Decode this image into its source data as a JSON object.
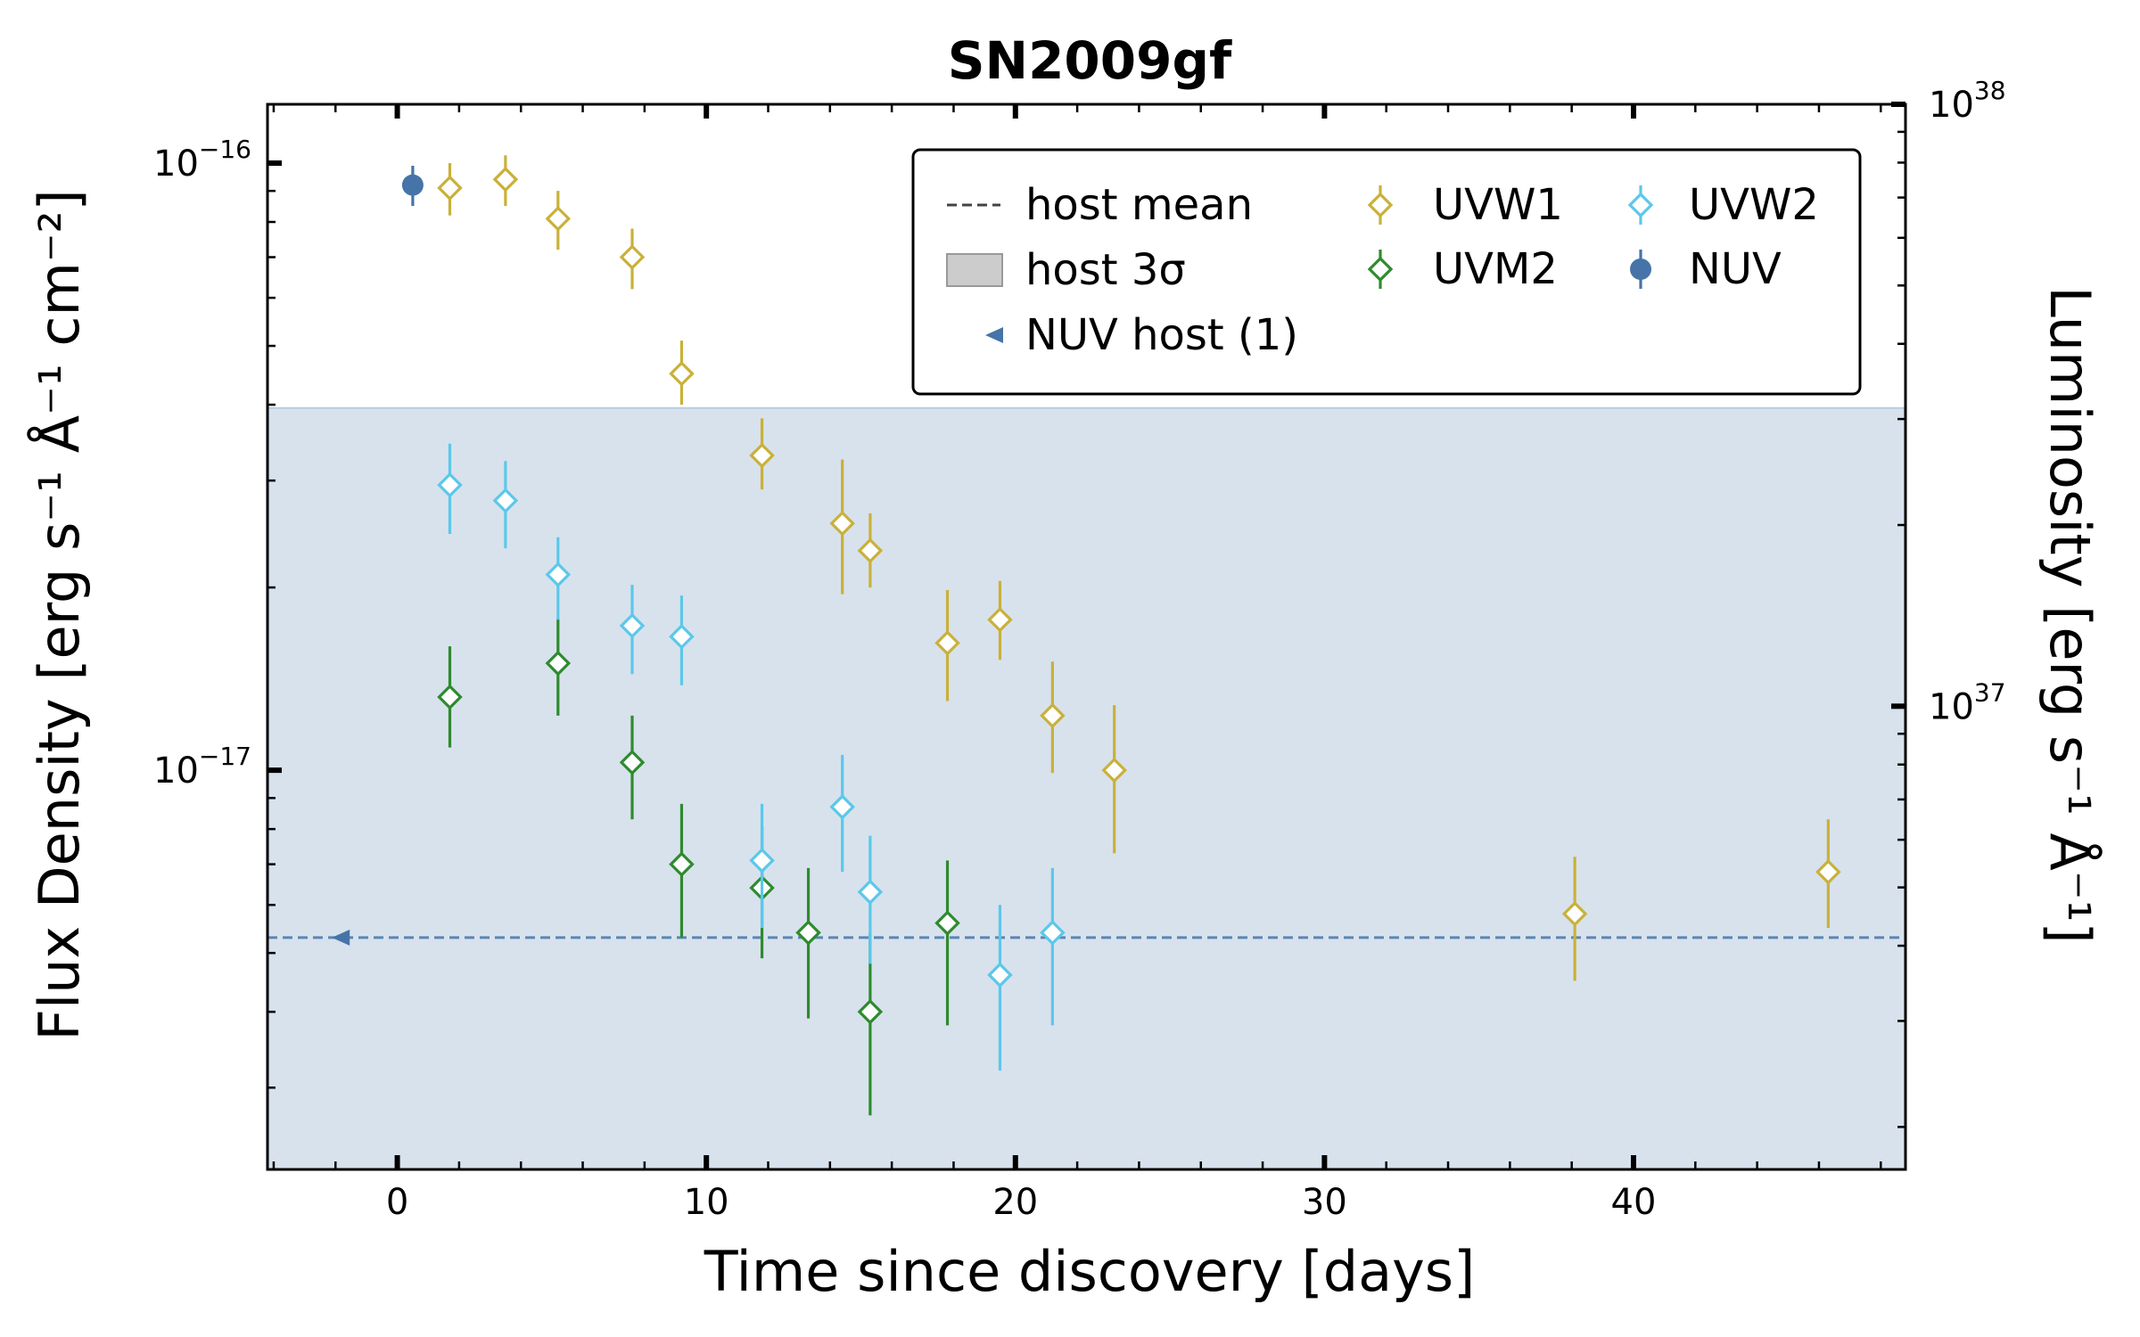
{
  "chart_data": {
    "type": "scatter",
    "title": "SN2009gf",
    "xlabel": "Time since discovery [days]",
    "ylabel": "Flux Density [erg s⁻¹ Å⁻¹ cm⁻²]",
    "ylabel_right": "Luminosity [erg s⁻¹ Å⁻¹]",
    "xlim": [
      -4.2,
      48.8
    ],
    "ylim": [
      2.2e-18,
      1.25e-16
    ],
    "yscale": "log",
    "xticks": [
      0,
      10,
      20,
      30,
      40
    ],
    "xtick_labels": [
      "0",
      "10",
      "20",
      "30",
      "40"
    ],
    "yticks_left": [
      1e-17,
      1e-16
    ],
    "yticks_left_labels": [
      {
        "base": "10",
        "exp": "−17"
      },
      {
        "base": "10",
        "exp": "−16"
      }
    ],
    "right_axis": {
      "lim": [
        1.7e+36,
        1e+38
      ],
      "scale": "log",
      "ticks": [
        1e+37,
        1e+38
      ],
      "tick_labels": [
        {
          "base": "10",
          "exp": "37"
        },
        {
          "base": "10",
          "exp": "38"
        }
      ]
    },
    "host": {
      "mean": 5.3e-18,
      "upper_3sigma": 3.95e-17,
      "mean_label": "host mean",
      "band_label": "host 3σ",
      "upper_limit": {
        "label": "NUV host (1)",
        "x": -1.8,
        "y": 5.3e-18
      }
    },
    "legend_position": "upper-right",
    "series": [
      {
        "name": "UVW1",
        "color": "#c9b13a",
        "marker": "diamond-open",
        "points": [
          {
            "x": 1.7,
            "y": 9.1e-17,
            "lo": 8.2e-17,
            "hi": 1e-16
          },
          {
            "x": 3.5,
            "y": 9.4e-17,
            "lo": 8.5e-17,
            "hi": 1.03e-16
          },
          {
            "x": 5.2,
            "y": 8.1e-17,
            "lo": 7.2e-17,
            "hi": 9e-17
          },
          {
            "x": 7.6,
            "y": 7e-17,
            "lo": 6.2e-17,
            "hi": 7.8e-17
          },
          {
            "x": 9.2,
            "y": 4.5e-17,
            "lo": 4e-17,
            "hi": 5.1e-17
          },
          {
            "x": 11.8,
            "y": 3.3e-17,
            "lo": 2.9e-17,
            "hi": 3.8e-17
          },
          {
            "x": 14.4,
            "y": 2.55e-17,
            "lo": 1.95e-17,
            "hi": 3.25e-17
          },
          {
            "x": 15.3,
            "y": 2.3e-17,
            "lo": 2e-17,
            "hi": 2.65e-17
          },
          {
            "x": 17.8,
            "y": 1.62e-17,
            "lo": 1.3e-17,
            "hi": 1.98e-17
          },
          {
            "x": 19.5,
            "y": 1.77e-17,
            "lo": 1.52e-17,
            "hi": 2.05e-17
          },
          {
            "x": 21.2,
            "y": 1.23e-17,
            "lo": 9.9e-18,
            "hi": 1.51e-17
          },
          {
            "x": 23.2,
            "y": 1e-17,
            "lo": 7.3e-18,
            "hi": 1.28e-17
          },
          {
            "x": 38.1,
            "y": 5.8e-18,
            "lo": 4.5e-18,
            "hi": 7.2e-18
          },
          {
            "x": 46.3,
            "y": 6.8e-18,
            "lo": 5.5e-18,
            "hi": 8.3e-18
          }
        ]
      },
      {
        "name": "UVM2",
        "color": "#2e8b2e",
        "marker": "diamond-open",
        "points": [
          {
            "x": 1.7,
            "y": 1.32e-17,
            "lo": 1.09e-17,
            "hi": 1.6e-17
          },
          {
            "x": 5.2,
            "y": 1.5e-17,
            "lo": 1.23e-17,
            "hi": 1.78e-17
          },
          {
            "x": 7.6,
            "y": 1.03e-17,
            "lo": 8.3e-18,
            "hi": 1.23e-17
          },
          {
            "x": 9.2,
            "y": 7e-18,
            "lo": 5.3e-18,
            "hi": 8.8e-18
          },
          {
            "x": 11.8,
            "y": 6.4e-18,
            "lo": 4.9e-18,
            "hi": 8.1e-18
          },
          {
            "x": 13.3,
            "y": 5.4e-18,
            "lo": 3.9e-18,
            "hi": 6.9e-18
          },
          {
            "x": 15.3,
            "y": 4e-18,
            "lo": 2.7e-18,
            "hi": 5.4e-18
          },
          {
            "x": 17.8,
            "y": 5.6e-18,
            "lo": 3.8e-18,
            "hi": 7.1e-18
          }
        ]
      },
      {
        "name": "UVW2",
        "color": "#5bc8ea",
        "marker": "diamond-open",
        "points": [
          {
            "x": 1.7,
            "y": 2.95e-17,
            "lo": 2.45e-17,
            "hi": 3.45e-17
          },
          {
            "x": 3.5,
            "y": 2.78e-17,
            "lo": 2.32e-17,
            "hi": 3.23e-17
          },
          {
            "x": 5.2,
            "y": 2.1e-17,
            "lo": 1.77e-17,
            "hi": 2.42e-17
          },
          {
            "x": 7.6,
            "y": 1.73e-17,
            "lo": 1.44e-17,
            "hi": 2.02e-17
          },
          {
            "x": 9.2,
            "y": 1.66e-17,
            "lo": 1.38e-17,
            "hi": 1.94e-17
          },
          {
            "x": 11.8,
            "y": 7.1e-18,
            "lo": 5.5e-18,
            "hi": 8.8e-18
          },
          {
            "x": 14.4,
            "y": 8.7e-18,
            "lo": 6.8e-18,
            "hi": 1.06e-17
          },
          {
            "x": 15.3,
            "y": 6.3e-18,
            "lo": 4.8e-18,
            "hi": 7.8e-18
          },
          {
            "x": 19.5,
            "y": 4.6e-18,
            "lo": 3.2e-18,
            "hi": 6e-18
          },
          {
            "x": 21.2,
            "y": 5.4e-18,
            "lo": 3.8e-18,
            "hi": 6.9e-18
          }
        ]
      },
      {
        "name": "NUV",
        "color": "#4674a8",
        "marker": "circle-filled",
        "points": [
          {
            "x": 0.5,
            "y": 9.2e-17,
            "lo": 8.5e-17,
            "hi": 9.9e-17
          }
        ]
      }
    ]
  }
}
